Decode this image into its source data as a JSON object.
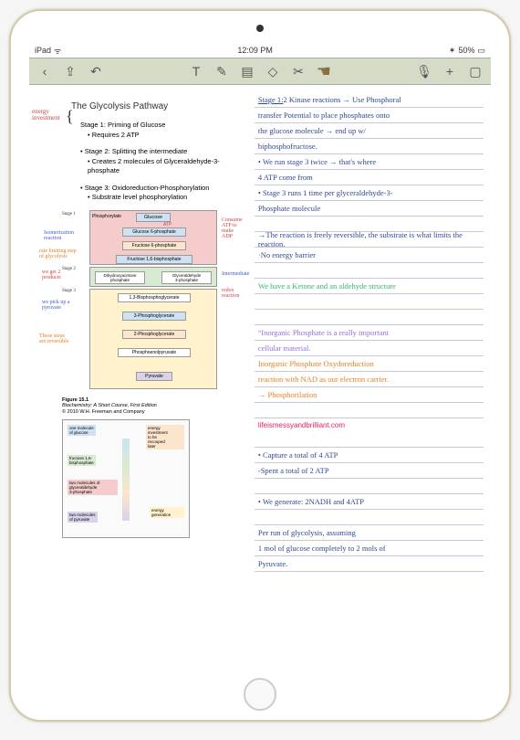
{
  "status": {
    "carrier": "iPad",
    "wifi": "᯾",
    "time": "12:09 PM",
    "bluetooth": "⚡",
    "battery_pct": "50%",
    "battery_icon": "▭"
  },
  "toolbar": {
    "back": "‹",
    "share": "⎋",
    "undo": "↶",
    "text_tool": "T",
    "pencil": "✎",
    "highlighter": "⧉",
    "eraser": "◇",
    "scissors": "✂",
    "hand": "☚",
    "mic": "🎤",
    "add": "+",
    "bookmark": "◻",
    "more": "⋯"
  },
  "document": {
    "title": "The Glycolysis Pathway",
    "annotations": {
      "energy_investment": "energy\ninvestment",
      "bracket": "{"
    },
    "stages": [
      {
        "heading": "Stage 1: Priming of Glucose",
        "sub": "• Requires 2 ATP"
      },
      {
        "heading": "• Stage 2: Splitting the intermediate",
        "sub": "• Creates 2 molecules of Glyceraldehyde-3-phosphate"
      },
      {
        "heading": "• Stage 3: Oxidoreduction-Phosphorylation",
        "sub": "• Substrate level phosphorylation"
      }
    ],
    "diagram": {
      "stage1_label": "Stage 1",
      "stage2_label": "Stage 2",
      "stage3_label": "Stage 3",
      "phosphorylate": "Phosphorylate",
      "glucose": "Glucose",
      "atp1": "ATP",
      "adp1": "ADP",
      "g6p": "Glucose 6-phosphate",
      "isomerization": "Isomerization\nreaction",
      "f6p": "Fructose 6-phosphate",
      "f16bp": "Fructose 1,6-bisphosphate",
      "rate_limiting": "rate limiting step\nof glycolysis",
      "consume_atp": "Consume ATP to\nmake ADP",
      "we_get_2": "we get 2\nproducts",
      "dhap": "Dihydroxyacetone\nphosphate",
      "gap": "Glyceraldehyde\n3-phosphate",
      "bpg": "1,3-Bisphosphoglycerate",
      "pg3": "3-Phosphoglycerate",
      "pg2": "2-Phosphoglycerate",
      "pep": "Phosphoenolpyruvate",
      "pyruvate": "Pyruvate",
      "we_pick": "we pick up a\npyruvate",
      "these_steps": "These steps\nare reversible",
      "redox": "redox reaction",
      "intermediate": "Intermediate",
      "kinase": "kinase\nreaction"
    },
    "figure_caption": {
      "fig_num": "Figure 15.1",
      "book": "Biochemistry: A Short Course, First Edition",
      "copyright": "© 2010 W.H. Freeman and Company"
    },
    "lower_diagram": {
      "glucose_mol": "one molecule\nof glucose",
      "energy_inv": "energy\ninvestment\nto be\nrecouped\nlater",
      "f16bp": "fructose 1,6-\nbisphosphate",
      "two_mol": "two molecules of\nglyceraldehyde\n3-phosphate",
      "pyruvate2": "two molecules\nof pyruvate",
      "energy_gen": "energy\ngeneration"
    },
    "watermark": "lifeismessyandbrilliant.com"
  },
  "notes": {
    "lines": [
      "Stage 1: 2 Kinase reactions → Use Phosphoral",
      "transfer Potential to place phosphates onto",
      "the glucose molecule → end up w/",
      "biphosphofructose.",
      "• We run stage 3 twice → that's where",
      "  4 ATP come from",
      "• Stage 3 runs 1 time per glyceraldehyde-3-",
      "  Phosphate molecule",
      "",
      "→The reaction is freely reversible, the substrate is what limits the reaction.",
      "  ·No energy barrier",
      "",
      "We have a Ketone and an aldehyde structure",
      "",
      "",
      "°Inorganic Phosphate is a really important",
      " cellular material.",
      "    Inorganic Phosphate Oxydoreduction",
      "reaction with NAD as our electron carrier.",
      "    → Phosphorilation",
      "",
      "",
      "• Capture a total of  4 ATP",
      "  -Spent a total  of  2 ATP",
      "",
      "• We generate:  2NADH  and  4ATP",
      "",
      "Per run of glycolysis, assuming",
      "1 mol of glucose completely to 2 mols of",
      "Pyruvate."
    ],
    "colored": {
      "9": "#2e4a8e",
      "10": "#2e4a8e",
      "12": "#3cb371",
      "15": "#9370db",
      "16": "#9370db",
      "17": "#e67e22",
      "18": "#e67e22",
      "19": "#e67e22"
    }
  }
}
